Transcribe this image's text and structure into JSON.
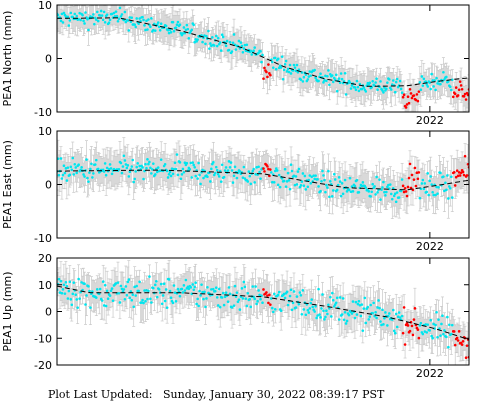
{
  "footer": {
    "updated_label": "Plot Last Updated:",
    "updated_value": "Sunday, January 30, 2022 08:39:17 PST"
  },
  "colors": {
    "recent": "#ff0000",
    "older": "#00e5ee",
    "error_bar": "#c8c8c8",
    "trend": "#000000"
  },
  "chart_data": [
    {
      "type": "scatter",
      "ylabel": "PEA1 North (mm)",
      "ylim": [
        -10,
        10
      ],
      "y_ticks": [
        -10,
        0,
        10
      ],
      "x_tick_label": "2022",
      "grid": false,
      "trend": [
        [
          0.0,
          7.5
        ],
        [
          0.15,
          7.6
        ],
        [
          0.3,
          5.2
        ],
        [
          0.45,
          2.0
        ],
        [
          0.55,
          -1.5
        ],
        [
          0.65,
          -3.8
        ],
        [
          0.75,
          -5.2
        ],
        [
          0.85,
          -5.1
        ],
        [
          0.92,
          -4.3
        ],
        [
          1.0,
          -3.6
        ]
      ],
      "spread": 1.2,
      "error_bar": 2.5,
      "red_ranges": [
        [
          0.5,
          0.52
        ],
        [
          0.84,
          0.88
        ],
        [
          0.96,
          1.0
        ]
      ],
      "red_offset": -2.5
    },
    {
      "type": "scatter",
      "ylabel": "PEA1 East (mm)",
      "ylim": [
        -10,
        10
      ],
      "y_ticks": [
        -10,
        0,
        10
      ],
      "x_tick_label": "2022",
      "grid": false,
      "trend": [
        [
          0.0,
          2.5
        ],
        [
          0.25,
          2.7
        ],
        [
          0.5,
          2.0
        ],
        [
          0.6,
          0.7
        ],
        [
          0.7,
          -0.6
        ],
        [
          0.85,
          -1.0
        ],
        [
          0.92,
          -0.2
        ],
        [
          1.0,
          0.8
        ]
      ],
      "spread": 1.6,
      "error_bar": 3.0,
      "red_ranges": [
        [
          0.5,
          0.52
        ],
        [
          0.84,
          0.88
        ],
        [
          0.96,
          1.0
        ]
      ],
      "red_offset": 1.5
    },
    {
      "type": "scatter",
      "ylabel": "PEA1 Up (mm)",
      "ylim": [
        -20,
        20
      ],
      "y_ticks": [
        -20,
        -10,
        0,
        10,
        20
      ],
      "x_tick_label": "2022",
      "grid": false,
      "trend": [
        [
          0.0,
          9.5
        ],
        [
          0.08,
          7.0
        ],
        [
          0.3,
          7.0
        ],
        [
          0.5,
          5.5
        ],
        [
          0.65,
          2.0
        ],
        [
          0.8,
          -2.0
        ],
        [
          0.92,
          -6.5
        ],
        [
          1.0,
          -10.5
        ]
      ],
      "spread": 4.0,
      "error_bar": 6.0,
      "red_ranges": [
        [
          0.5,
          0.52
        ],
        [
          0.84,
          0.88
        ],
        [
          0.96,
          1.0
        ]
      ],
      "red_offset": -1.0
    }
  ]
}
